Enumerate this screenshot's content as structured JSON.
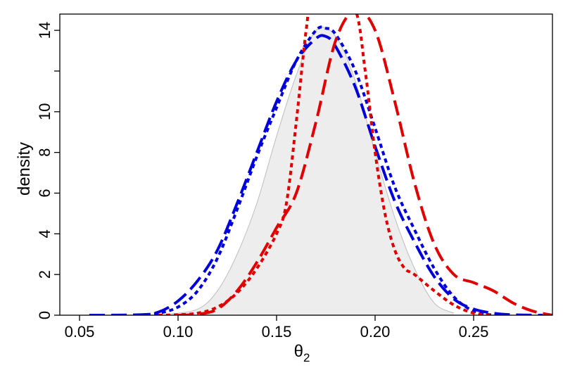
{
  "chart_data": {
    "type": "line",
    "xlabel": "θ",
    "xlabel_subscript": "2",
    "ylabel": "density",
    "xlim": [
      0.04,
      0.29
    ],
    "ylim": [
      0,
      14.8
    ],
    "x_ticks": [
      {
        "value": 0.05,
        "label": "0.05"
      },
      {
        "value": 0.1,
        "label": "0.10"
      },
      {
        "value": 0.15,
        "label": "0.15"
      },
      {
        "value": 0.2,
        "label": "0.20"
      },
      {
        "value": 0.25,
        "label": "0.25"
      }
    ],
    "y_ticks": [
      {
        "value": 0,
        "label": "0"
      },
      {
        "value": 2,
        "label": "2"
      },
      {
        "value": 4,
        "label": "4"
      },
      {
        "value": 6,
        "label": "6"
      },
      {
        "value": 8,
        "label": "8"
      },
      {
        "value": 10,
        "label": "10"
      },
      {
        "value": 12,
        "label": ""
      },
      {
        "value": 14,
        "label": "14"
      }
    ],
    "grid": false,
    "legend": "none",
    "filled_density": {
      "fill": "#ededed",
      "stroke": "#bdbdbd",
      "x": [
        0.095,
        0.11,
        0.12,
        0.13,
        0.14,
        0.15,
        0.16,
        0.17,
        0.18,
        0.19,
        0.2,
        0.21,
        0.22,
        0.23,
        0.24
      ],
      "y": [
        0.05,
        0.3,
        1.2,
        3.0,
        5.5,
        8.8,
        11.8,
        14.0,
        13.7,
        11.5,
        8.0,
        4.8,
        2.3,
        0.6,
        0.1
      ]
    },
    "series": [
      {
        "color": "#0000dd",
        "dash": "long",
        "x": [
          0.055,
          0.08,
          0.09,
          0.1,
          0.11,
          0.12,
          0.13,
          0.14,
          0.15,
          0.16,
          0.17,
          0.175,
          0.18,
          0.19,
          0.2,
          0.21,
          0.22,
          0.23,
          0.24,
          0.25,
          0.26,
          0.27,
          0.285
        ],
        "y": [
          0,
          0.02,
          0.15,
          0.7,
          1.7,
          3.2,
          5.5,
          8.0,
          10.5,
          12.5,
          13.6,
          13.7,
          13.2,
          11.2,
          8.3,
          5.6,
          3.6,
          1.9,
          0.8,
          0.3,
          0.1,
          0.02,
          0
        ]
      },
      {
        "color": "#0000dd",
        "dash": "short",
        "x": [
          0.08,
          0.09,
          0.1,
          0.11,
          0.12,
          0.13,
          0.14,
          0.15,
          0.16,
          0.17,
          0.175,
          0.18,
          0.19,
          0.2,
          0.21,
          0.22,
          0.23,
          0.24,
          0.25,
          0.26
        ],
        "y": [
          0,
          0.1,
          0.4,
          1.2,
          2.8,
          5.2,
          7.8,
          10.2,
          12.5,
          14.0,
          14.1,
          13.8,
          12.0,
          9.2,
          6.3,
          4.2,
          2.3,
          0.9,
          0.2,
          0
        ]
      },
      {
        "color": "#e00000",
        "dash": "long",
        "x": [
          0.1,
          0.11,
          0.12,
          0.13,
          0.14,
          0.15,
          0.16,
          0.17,
          0.18,
          0.19,
          0.2,
          0.21,
          0.22,
          0.23,
          0.24,
          0.25,
          0.26,
          0.27,
          0.28,
          0.29
        ],
        "y": [
          0,
          0.05,
          0.3,
          1.2,
          2.6,
          4.3,
          6.0,
          9.5,
          13.5,
          15.0,
          14.0,
          10.5,
          6.5,
          3.5,
          2.0,
          1.6,
          1.2,
          0.6,
          0.2,
          0
        ]
      },
      {
        "color": "#e00000",
        "dash": "short",
        "x": [
          0.09,
          0.1,
          0.11,
          0.12,
          0.13,
          0.14,
          0.15,
          0.155,
          0.16,
          0.165,
          0.168,
          0.18,
          0.19,
          0.195,
          0.2,
          0.205,
          0.21,
          0.215,
          0.22,
          0.23,
          0.24,
          0.25,
          0.26
        ],
        "y": [
          0,
          0.02,
          0.1,
          0.4,
          1.1,
          2.3,
          4.0,
          5.5,
          9.5,
          14.0,
          15.2,
          15.5,
          15.0,
          12.0,
          8.0,
          5.0,
          3.2,
          2.3,
          2.0,
          1.2,
          0.5,
          0.1,
          0
        ]
      }
    ]
  }
}
